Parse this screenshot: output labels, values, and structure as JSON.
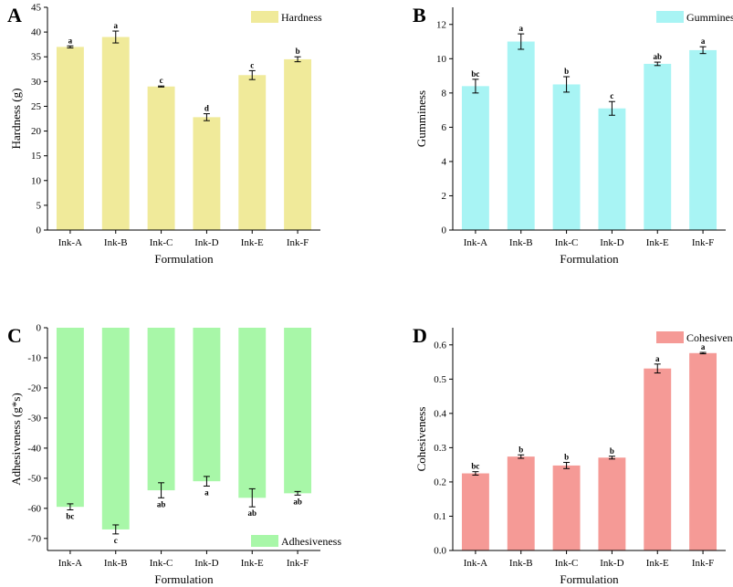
{
  "chart_data": [
    {
      "type": "bar",
      "panel_label": "A",
      "legend": "Hardness",
      "legend_position": "top-right",
      "xlabel": "Formulation",
      "ylabel": "Hardness (g)",
      "ylim": [
        0,
        45
      ],
      "yticks": [
        0,
        5,
        10,
        15,
        20,
        25,
        30,
        35,
        40,
        45
      ],
      "categories": [
        "Ink-A",
        "Ink-B",
        "Ink-C",
        "Ink-D",
        "Ink-E",
        "Ink-F"
      ],
      "values": [
        37.0,
        39.0,
        29.0,
        22.8,
        31.3,
        34.5
      ],
      "errors": [
        0.2,
        1.2,
        0.1,
        0.7,
        0.9,
        0.5
      ],
      "letters": [
        "a",
        "a",
        "c",
        "d",
        "c",
        "b"
      ],
      "color": "#f0ea9a"
    },
    {
      "type": "bar",
      "panel_label": "B",
      "legend": "Gumminess",
      "legend_position": "top-right",
      "xlabel": "Formulation",
      "ylabel": "Gumminess",
      "ylim": [
        0,
        13
      ],
      "yticks": [
        0,
        2,
        4,
        6,
        8,
        10,
        12
      ],
      "categories": [
        "Ink-A",
        "Ink-B",
        "Ink-C",
        "Ink-D",
        "Ink-E",
        "Ink-F"
      ],
      "values": [
        8.4,
        11.0,
        8.5,
        7.1,
        9.7,
        10.5
      ],
      "errors": [
        0.4,
        0.45,
        0.45,
        0.4,
        0.1,
        0.2
      ],
      "letters": [
        "bc",
        "a",
        "b",
        "c",
        "ab",
        "a"
      ],
      "color": "#a8f4f4"
    },
    {
      "type": "bar",
      "panel_label": "C",
      "legend": "Adhesiveness",
      "legend_position": "bottom-right",
      "xlabel": "Formulation",
      "ylabel": "Adhesiveness (g*s)",
      "ylim": [
        -74,
        0
      ],
      "yticks": [
        0,
        -10,
        -20,
        -30,
        -40,
        -50,
        -60,
        -70
      ],
      "categories": [
        "Ink-A",
        "Ink-B",
        "Ink-C",
        "Ink-D",
        "Ink-E",
        "Ink-F"
      ],
      "values": [
        -59.5,
        -67.0,
        -54.0,
        -51.0,
        -56.5,
        -55.0
      ],
      "errors": [
        1.0,
        1.5,
        2.5,
        1.6,
        3.0,
        0.6
      ],
      "letters": [
        "bc",
        "c",
        "ab",
        "a",
        "ab",
        "ab"
      ],
      "color": "#a8f7a8"
    },
    {
      "type": "bar",
      "panel_label": "D",
      "legend": "Cohesiveness",
      "legend_position": "top-right",
      "xlabel": "Formulation",
      "ylabel": "Cohesiveness",
      "ylim": [
        0,
        0.65
      ],
      "yticks": [
        0.0,
        0.1,
        0.2,
        0.3,
        0.4,
        0.5,
        0.6
      ],
      "categories": [
        "Ink-A",
        "Ink-B",
        "Ink-C",
        "Ink-D",
        "Ink-E",
        "Ink-F"
      ],
      "values": [
        0.225,
        0.274,
        0.248,
        0.271,
        0.531,
        0.576
      ],
      "errors": [
        0.005,
        0.005,
        0.009,
        0.004,
        0.013,
        0.002
      ],
      "letters": [
        "bc",
        "b",
        "b",
        "b",
        "a",
        "a"
      ],
      "color": "#f59a96"
    }
  ]
}
